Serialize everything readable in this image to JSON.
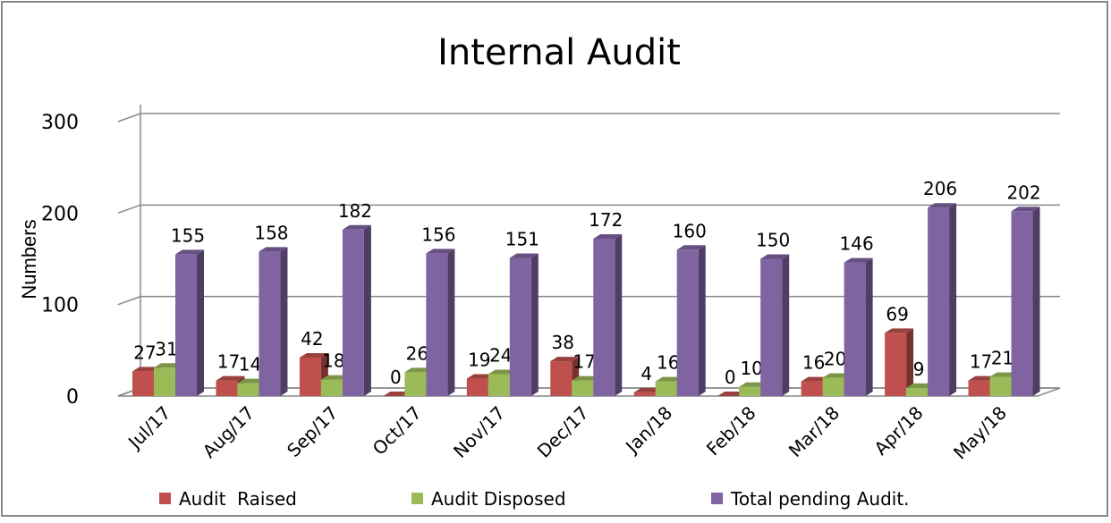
{
  "chart_data": {
    "type": "bar3d",
    "title": "Internal Audit",
    "y_label": "Numbers",
    "categories": [
      "Jul/17",
      "Aug/17",
      "Sep/17",
      "Oct/17",
      "Nov/17",
      "Dec/17",
      "Jan/18",
      "Feb/18",
      "Mar/18",
      "Apr/18",
      "May/18"
    ],
    "series": [
      {
        "name": "Audit  Raised",
        "color": "#c0504d",
        "values": [
          27,
          17,
          42,
          0,
          19,
          38,
          4,
          0,
          16,
          69,
          17
        ]
      },
      {
        "name": "Audit Disposed",
        "color": "#9bbb59",
        "values": [
          31,
          14,
          18,
          26,
          24,
          17,
          16,
          10,
          20,
          9,
          21
        ]
      },
      {
        "name": "Total pending Audit.",
        "color": "#8064a2",
        "values": [
          155,
          158,
          182,
          156,
          151,
          172,
          160,
          150,
          146,
          206,
          202
        ]
      }
    ],
    "ylim": [
      0,
      300
    ],
    "yticks": [
      0,
      100,
      200,
      300
    ],
    "grid": true,
    "legend": "bottom"
  }
}
